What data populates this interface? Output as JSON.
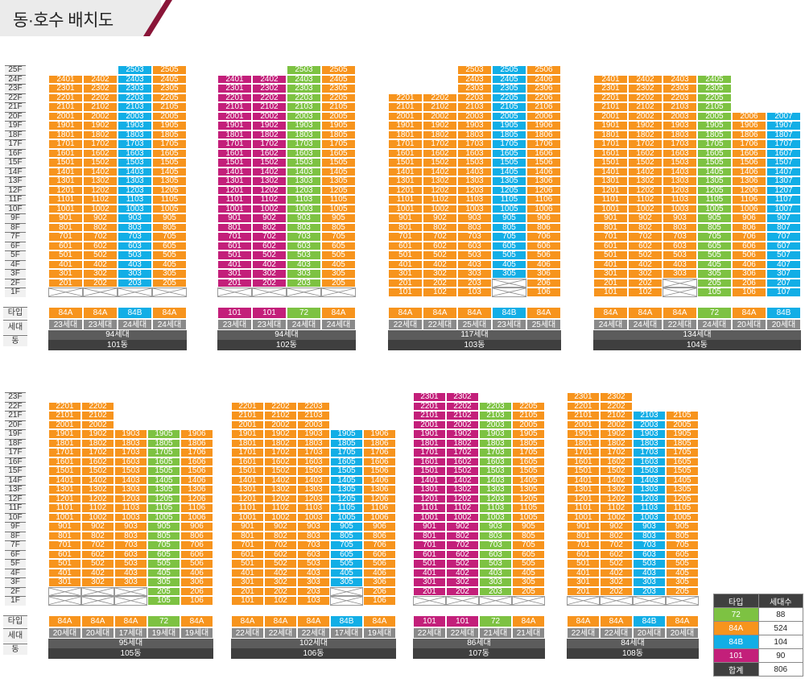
{
  "title": "동·호수 배치도",
  "row_labels": {
    "type": "타입",
    "households": "세대",
    "dong": "동"
  },
  "colors": {
    "84A": "#f7941d",
    "84B": "#12aee6",
    "72": "#7dc242",
    "101": "#c31f7a"
  },
  "buildings": [
    {
      "name": "101동",
      "total": "94세대",
      "max_floor": 25,
      "lines": [
        {
          "suffix": "01",
          "unit_type": "84A",
          "count": "23세대",
          "floors": [
            2,
            24
          ]
        },
        {
          "suffix": "02",
          "unit_type": "84A",
          "count": "23세대",
          "floors": [
            2,
            24
          ]
        },
        {
          "suffix": "03",
          "unit_type": "84B",
          "count": "24세대",
          "floors": [
            2,
            25
          ]
        },
        {
          "suffix": "05",
          "unit_type": "84A",
          "count": "24세대",
          "floors": [
            2,
            25
          ]
        }
      ]
    },
    {
      "name": "102동",
      "total": "94세대",
      "max_floor": 25,
      "lines": [
        {
          "suffix": "01",
          "unit_type": "101",
          "count": "23세대",
          "floors": [
            2,
            24
          ]
        },
        {
          "suffix": "02",
          "unit_type": "101",
          "count": "23세대",
          "floors": [
            2,
            24
          ]
        },
        {
          "suffix": "03",
          "unit_type": "72",
          "count": "24세대",
          "floors": [
            2,
            25
          ]
        },
        {
          "suffix": "05",
          "unit_type": "84A",
          "count": "24세대",
          "floors": [
            2,
            25
          ]
        }
      ]
    },
    {
      "name": "103동",
      "total": "117세대",
      "max_floor": 25,
      "lines": [
        {
          "suffix": "01",
          "unit_type": "84A",
          "count": "22세대",
          "floors": [
            1,
            22
          ]
        },
        {
          "suffix": "02",
          "unit_type": "84A",
          "count": "22세대",
          "floors": [
            1,
            22
          ]
        },
        {
          "suffix": "03",
          "unit_type": "84A",
          "count": "25세대",
          "floors": [
            1,
            25
          ]
        },
        {
          "suffix": "05",
          "unit_type": "84B",
          "count": "23세대",
          "floors": [
            3,
            25
          ]
        },
        {
          "suffix": "06",
          "unit_type": "84A",
          "count": "25세대",
          "floors": [
            1,
            25
          ]
        }
      ]
    },
    {
      "name": "104동",
      "total": "134세대",
      "max_floor": 25,
      "lines": [
        {
          "suffix": "01",
          "unit_type": "84A",
          "count": "24세대",
          "floors": [
            1,
            24
          ]
        },
        {
          "suffix": "02",
          "unit_type": "84A",
          "count": "24세대",
          "floors": [
            1,
            24
          ]
        },
        {
          "suffix": "03",
          "unit_type": "84A",
          "count": "22세대",
          "floors": [
            3,
            24
          ]
        },
        {
          "suffix": "05",
          "unit_type": "72",
          "count": "24세대",
          "floors": [
            1,
            24
          ]
        },
        {
          "suffix": "06",
          "unit_type": "84A",
          "count": "20세대",
          "floors": [
            1,
            20
          ]
        },
        {
          "suffix": "07",
          "unit_type": "84B",
          "count": "20세대",
          "floors": [
            1,
            20
          ]
        }
      ]
    },
    {
      "name": "105동",
      "total": "95세대",
      "max_floor": 23,
      "lines": [
        {
          "suffix": "01",
          "unit_type": "84A",
          "count": "20세대",
          "floors": [
            3,
            22
          ]
        },
        {
          "suffix": "02",
          "unit_type": "84A",
          "count": "20세대",
          "floors": [
            3,
            22
          ]
        },
        {
          "suffix": "03",
          "unit_type": "84A",
          "count": "17세대",
          "floors": [
            3,
            19
          ]
        },
        {
          "suffix": "05",
          "unit_type": "72",
          "count": "19세대",
          "floors": [
            1,
            19
          ]
        },
        {
          "suffix": "06",
          "unit_type": "84A",
          "count": "19세대",
          "floors": [
            1,
            19
          ]
        }
      ]
    },
    {
      "name": "106동",
      "total": "102세대",
      "max_floor": 23,
      "lines": [
        {
          "suffix": "01",
          "unit_type": "84A",
          "count": "22세대",
          "floors": [
            1,
            22
          ]
        },
        {
          "suffix": "02",
          "unit_type": "84A",
          "count": "22세대",
          "floors": [
            1,
            22
          ]
        },
        {
          "suffix": "03",
          "unit_type": "84A",
          "count": "22세대",
          "floors": [
            1,
            22
          ]
        },
        {
          "suffix": "05",
          "unit_type": "84B",
          "count": "17세대",
          "floors": [
            3,
            19
          ]
        },
        {
          "suffix": "06",
          "unit_type": "84A",
          "count": "19세대",
          "floors": [
            1,
            19
          ]
        }
      ]
    },
    {
      "name": "107동",
      "total": "86세대",
      "max_floor": 23,
      "lines": [
        {
          "suffix": "01",
          "unit_type": "101",
          "count": "22세대",
          "floors": [
            2,
            23
          ]
        },
        {
          "suffix": "02",
          "unit_type": "101",
          "count": "22세대",
          "floors": [
            2,
            23
          ]
        },
        {
          "suffix": "03",
          "unit_type": "72",
          "count": "21세대",
          "floors": [
            2,
            22
          ]
        },
        {
          "suffix": "05",
          "unit_type": "84A",
          "count": "21세대",
          "floors": [
            2,
            22
          ]
        }
      ]
    },
    {
      "name": "108동",
      "total": "84세대",
      "max_floor": 23,
      "lines": [
        {
          "suffix": "01",
          "unit_type": "84A",
          "count": "22세대",
          "floors": [
            2,
            23
          ]
        },
        {
          "suffix": "02",
          "unit_type": "84A",
          "count": "22세대",
          "floors": [
            2,
            23
          ]
        },
        {
          "suffix": "03",
          "unit_type": "84B",
          "count": "20세대",
          "floors": [
            2,
            21
          ]
        },
        {
          "suffix": "05",
          "unit_type": "84A",
          "count": "20세대",
          "floors": [
            2,
            21
          ]
        }
      ]
    }
  ],
  "legend": {
    "headers": [
      "타입",
      "세대수"
    ],
    "rows": [
      {
        "type": "72",
        "count": "88"
      },
      {
        "type": "84A",
        "count": "524"
      },
      {
        "type": "84B",
        "count": "104"
      },
      {
        "type": "101",
        "count": "90"
      }
    ],
    "total_label": "합계",
    "total_value": "806"
  }
}
